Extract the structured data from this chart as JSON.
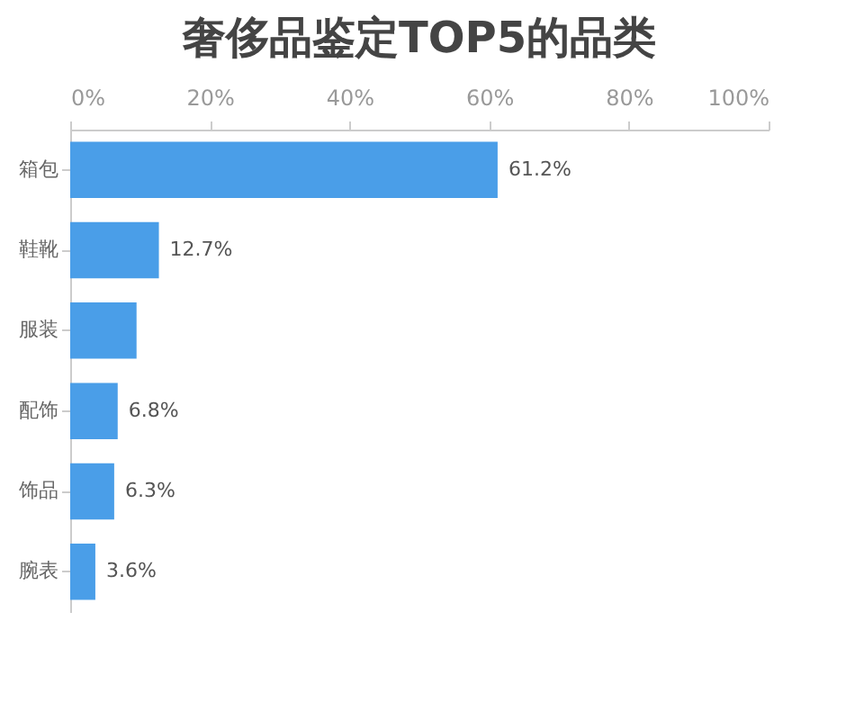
{
  "chart_data": {
    "type": "bar",
    "title": "奢侈品鉴定TOP5的品类",
    "orientation": "horizontal",
    "categories": [
      "箱包",
      "鞋靴",
      "服装",
      "配饰",
      "饰品",
      "腕表"
    ],
    "values": [
      61.2,
      12.7,
      9.5,
      6.8,
      6.3,
      3.6
    ],
    "value_labels": [
      "61.2%",
      "12.7%",
      null,
      "6.8%",
      "6.3%",
      "3.6%"
    ],
    "color": "#4a9ee8",
    "xlim": [
      0,
      100
    ],
    "xticks": [
      {
        "value": 0,
        "label": "0%"
      },
      {
        "value": 20,
        "label": "20%"
      },
      {
        "value": 40,
        "label": "40%"
      },
      {
        "value": 60,
        "label": "60%"
      },
      {
        "value": 80,
        "label": "80%"
      },
      {
        "value": 100,
        "label": "100%"
      }
    ],
    "grid": false
  }
}
